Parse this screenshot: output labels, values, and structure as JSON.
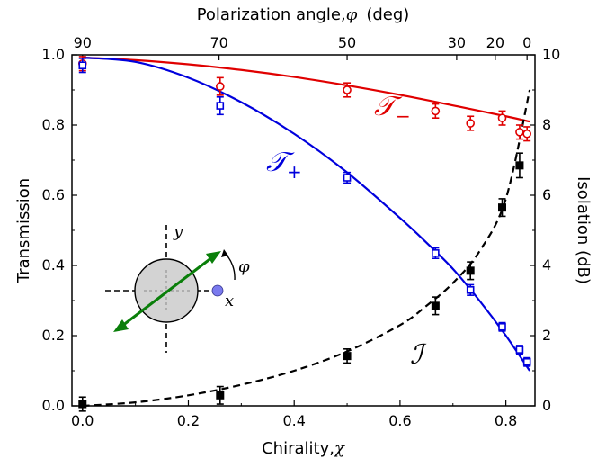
{
  "chart_data": {
    "type": "scatter",
    "xlabel": "Chirality,",
    "xlabel_symbol": "χ",
    "ylabel_left": "Transmission",
    "ylabel_right": "Isolation (dB)",
    "top_label": "Polarization angle,",
    "top_label_symbol": "φ",
    "top_label_unit": "(deg)",
    "xlim": [
      -0.02,
      0.855
    ],
    "ylim_left": [
      0,
      1
    ],
    "ylim_right": [
      0,
      10
    ],
    "x_ticks": [
      0.0,
      0.2,
      0.4,
      0.6,
      0.8
    ],
    "x_tick_labels": [
      "0.0",
      "0.2",
      "0.4",
      "0.6",
      "0.8"
    ],
    "y_ticks": [
      0.0,
      0.2,
      0.4,
      0.6,
      0.8,
      1.0
    ],
    "y_tick_labels": [
      "0.0",
      "0.2",
      "0.4",
      "0.6",
      "0.8",
      "1.0"
    ],
    "y2_ticks": [
      0,
      2,
      4,
      6,
      8,
      10
    ],
    "y2_tick_labels": [
      "0",
      "2",
      "4",
      "6",
      "8",
      "10"
    ],
    "top_ticks": [
      {
        "label": "90",
        "x": 0.0
      },
      {
        "label": "70",
        "x": 0.258
      },
      {
        "label": "50",
        "x": 0.5
      },
      {
        "label": "30",
        "x": 0.707
      },
      {
        "label": "20",
        "x": 0.78
      },
      {
        "label": "0",
        "x": 0.84
      }
    ],
    "colors": {
      "t_minus": "#e00000",
      "t_plus": "#0000dd",
      "isolation": "#000000",
      "arrow": "#0a7f0a",
      "disk": "#d3d3d3",
      "ball": "#7a7aee"
    },
    "series": [
      {
        "key": "t_minus",
        "label": "𝒯",
        "label_sub": "−",
        "axis": "left",
        "marker": "circle-open",
        "points": [
          {
            "x": 0.0,
            "y": 0.975,
            "err": 0.02
          },
          {
            "x": 0.26,
            "y": 0.91,
            "err": 0.025
          },
          {
            "x": 0.5,
            "y": 0.9,
            "err": 0.02
          },
          {
            "x": 0.667,
            "y": 0.84,
            "err": 0.02
          },
          {
            "x": 0.733,
            "y": 0.805,
            "err": 0.02
          },
          {
            "x": 0.793,
            "y": 0.82,
            "err": 0.02
          },
          {
            "x": 0.826,
            "y": 0.78,
            "err": 0.02
          },
          {
            "x": 0.84,
            "y": 0.775,
            "err": 0.02
          }
        ],
        "fit": {
          "x": [
            0.0,
            0.1,
            0.2,
            0.3,
            0.4,
            0.5,
            0.6,
            0.7,
            0.8,
            0.845
          ],
          "y": [
            0.992,
            0.985,
            0.973,
            0.957,
            0.937,
            0.913,
            0.886,
            0.856,
            0.825,
            0.81
          ]
        }
      },
      {
        "key": "t_plus",
        "label": "𝒯",
        "label_sub": "+",
        "axis": "left",
        "marker": "square-open",
        "points": [
          {
            "x": 0.0,
            "y": 0.97,
            "err": 0.02
          },
          {
            "x": 0.26,
            "y": 0.855,
            "err": 0.025
          },
          {
            "x": 0.5,
            "y": 0.65,
            "err": 0.015
          },
          {
            "x": 0.667,
            "y": 0.435,
            "err": 0.015
          },
          {
            "x": 0.733,
            "y": 0.33,
            "err": 0.015
          },
          {
            "x": 0.793,
            "y": 0.225,
            "err": 0.012
          },
          {
            "x": 0.826,
            "y": 0.16,
            "err": 0.012
          },
          {
            "x": 0.84,
            "y": 0.125,
            "err": 0.012
          }
        ],
        "fit": {
          "x": [
            0.0,
            0.1,
            0.2,
            0.3,
            0.4,
            0.5,
            0.6,
            0.65,
            0.7,
            0.75,
            0.8,
            0.845
          ],
          "y": [
            0.992,
            0.98,
            0.935,
            0.865,
            0.775,
            0.665,
            0.535,
            0.465,
            0.39,
            0.3,
            0.2,
            0.1
          ]
        }
      },
      {
        "key": "isolation",
        "label": "ℐ",
        "axis": "right",
        "marker": "square-filled",
        "points": [
          {
            "x": 0.0,
            "y": 0.05,
            "err": 0.2
          },
          {
            "x": 0.26,
            "y": 0.3,
            "err": 0.25
          },
          {
            "x": 0.5,
            "y": 1.42,
            "err": 0.2
          },
          {
            "x": 0.667,
            "y": 2.85,
            "err": 0.25
          },
          {
            "x": 0.733,
            "y": 3.85,
            "err": 0.25
          },
          {
            "x": 0.793,
            "y": 5.65,
            "err": 0.25
          },
          {
            "x": 0.826,
            "y": 6.85,
            "err": 0.35
          }
        ],
        "fit": {
          "x": [
            0.0,
            0.1,
            0.2,
            0.3,
            0.4,
            0.5,
            0.6,
            0.65,
            0.7,
            0.75,
            0.8,
            0.845
          ],
          "y": [
            0.0,
            0.1,
            0.3,
            0.6,
            1.0,
            1.55,
            2.3,
            2.85,
            3.5,
            4.4,
            5.9,
            9.0
          ]
        }
      }
    ],
    "inset": {
      "x_label": "x",
      "y_label": "y",
      "angle_label": "φ"
    }
  }
}
